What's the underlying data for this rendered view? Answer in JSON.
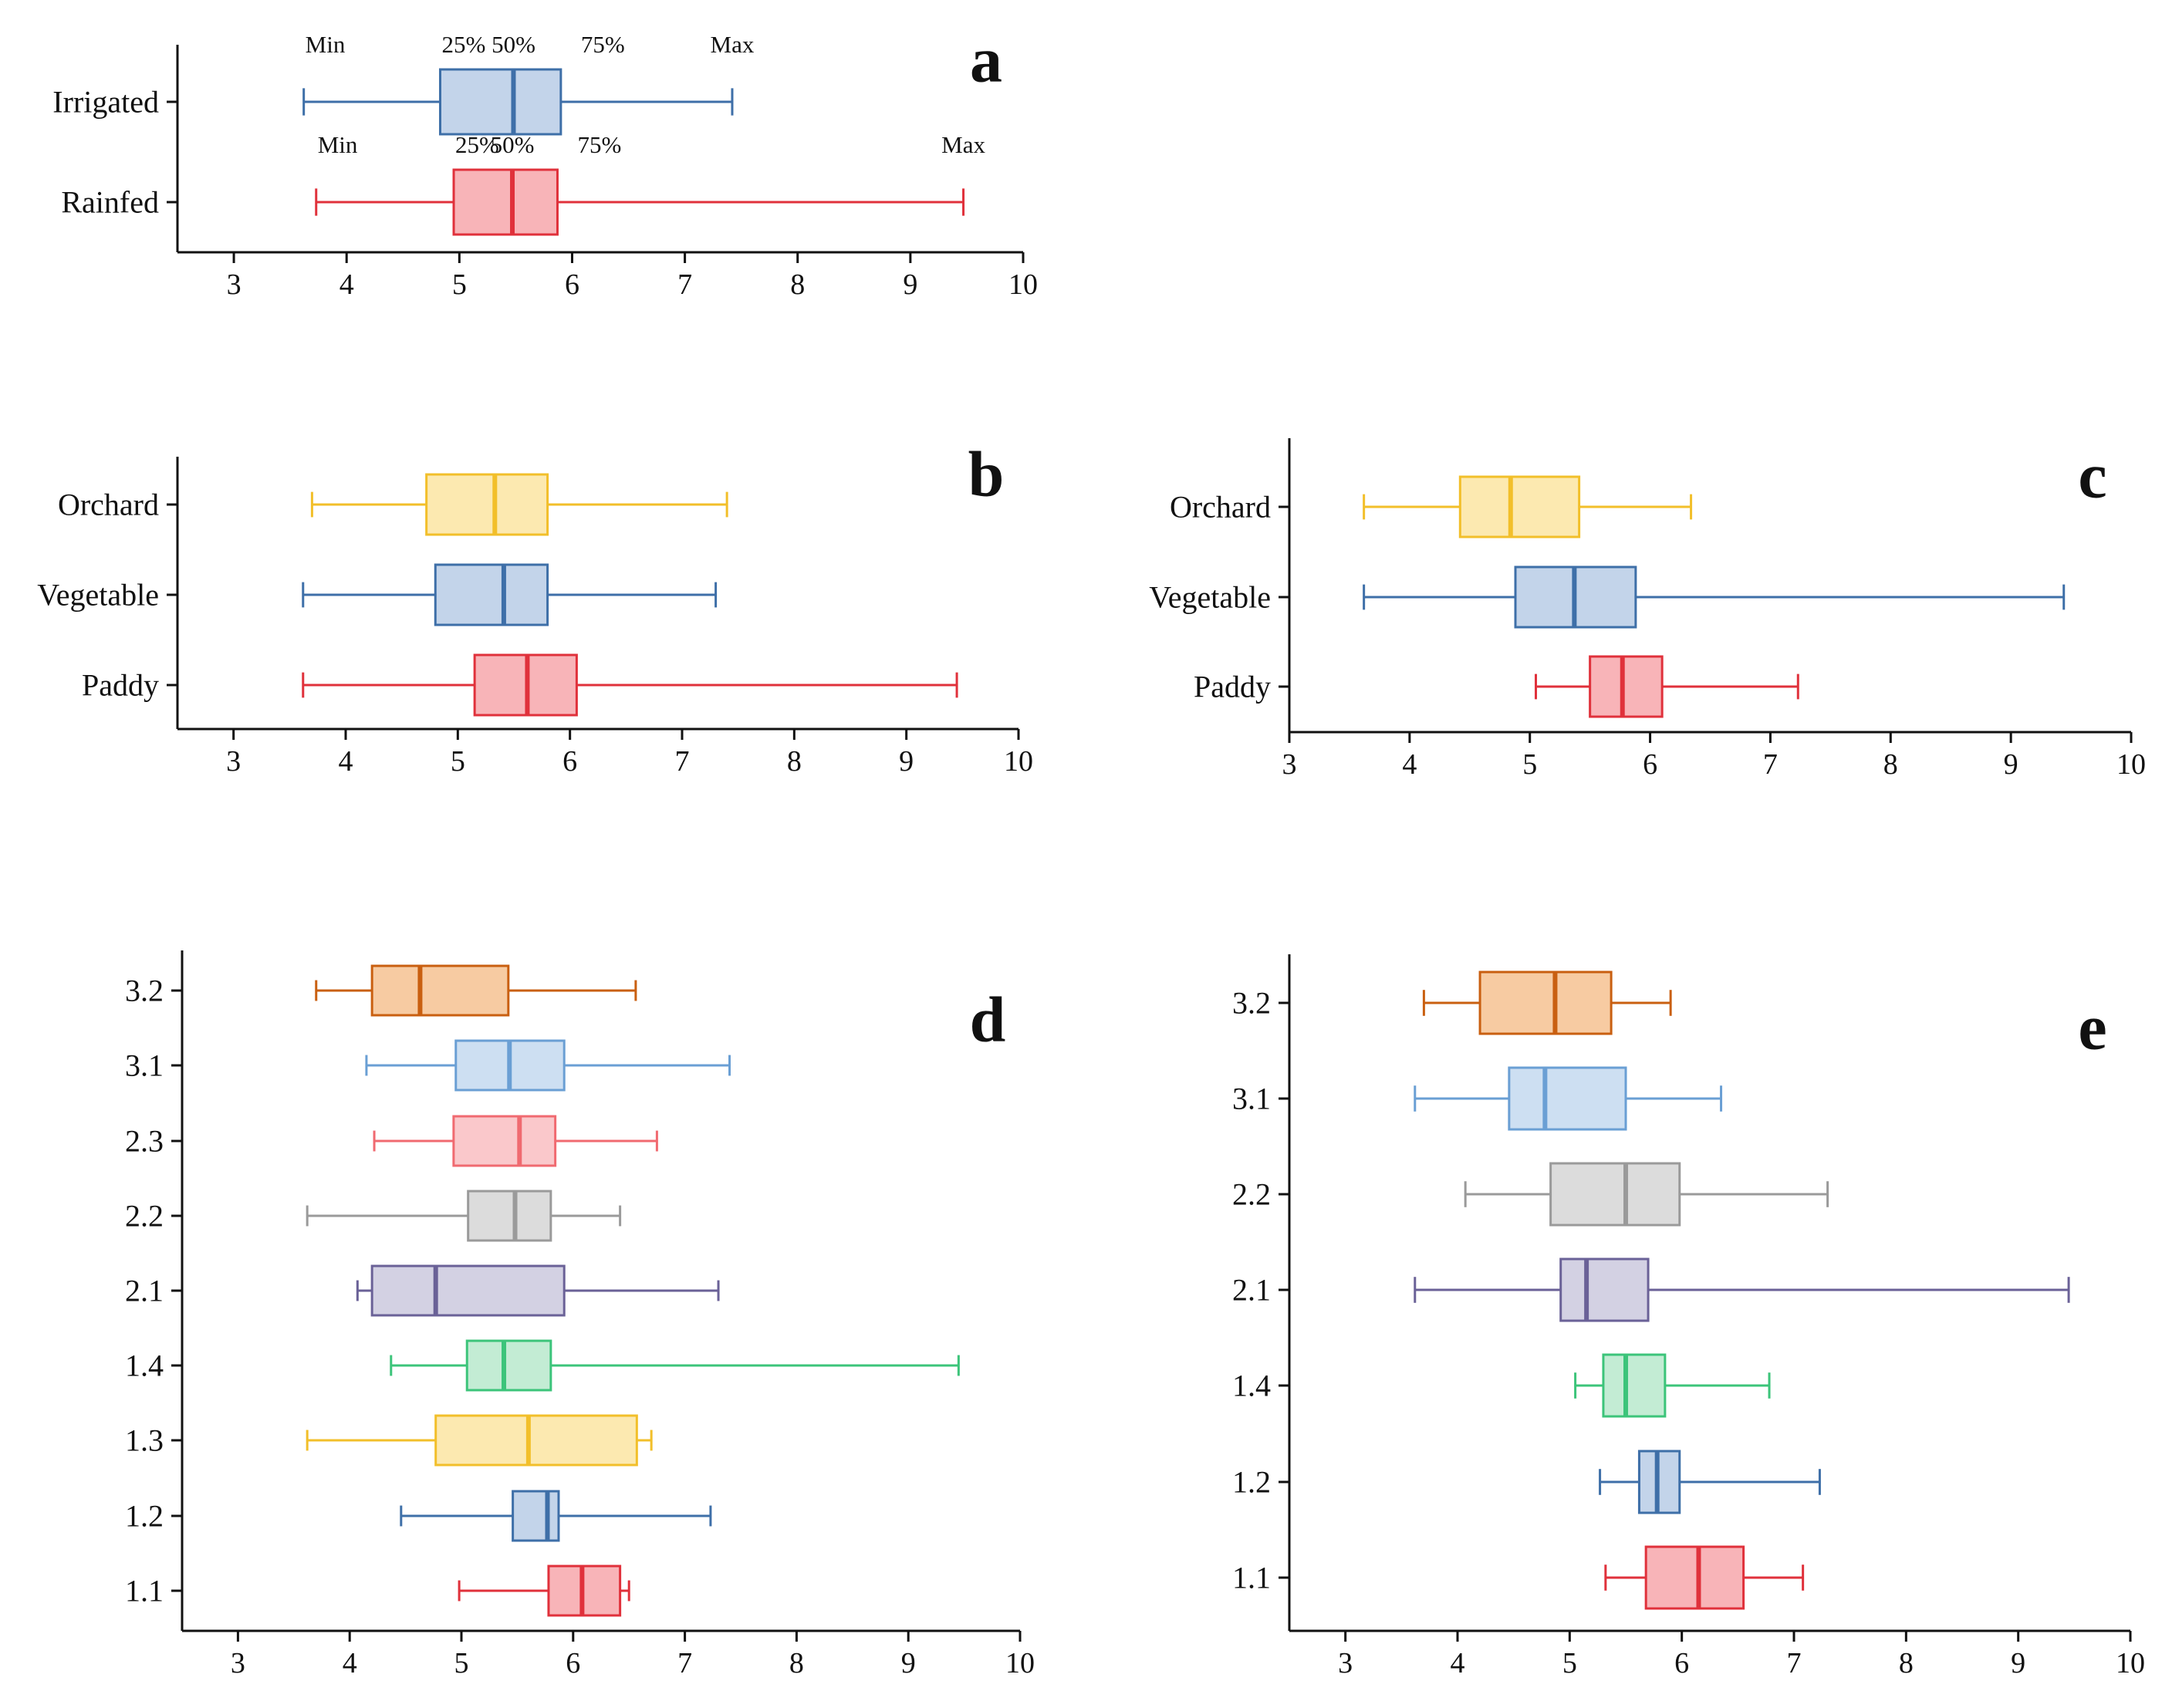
{
  "chart_data": [
    {
      "id": "a",
      "type": "boxplot-horizontal",
      "panel_label": "a",
      "xlim": [
        2.5,
        10
      ],
      "xticks": [
        3,
        4,
        5,
        6,
        7,
        8,
        9,
        10
      ],
      "series": [
        {
          "name": "Irrigated",
          "color": "#3e6fa8",
          "fill": "#c3d4ea",
          "min": 3.62,
          "q1": 4.83,
          "median": 5.48,
          "q3": 5.9,
          "max": 7.42
        },
        {
          "name": "Rainfed",
          "color": "#e0313b",
          "fill": "#f8b4b8",
          "min": 3.73,
          "q1": 4.95,
          "median": 5.47,
          "q3": 5.87,
          "max": 9.47
        }
      ],
      "annotations": {
        "Irrigated": {
          "min": "Min",
          "q1": "25%",
          "median": "50%",
          "q3": "75%",
          "max": "Max"
        },
        "Rainfed": {
          "min": "Min",
          "q1": "25%",
          "median": "50%",
          "q3": "75%",
          "max": "Max"
        }
      }
    },
    {
      "id": "b",
      "type": "boxplot-horizontal",
      "panel_label": "b",
      "xlim": [
        2.5,
        10
      ],
      "xticks": [
        3,
        4,
        5,
        6,
        7,
        8,
        9,
        10
      ],
      "series": [
        {
          "name": "Orchard",
          "color": "#f2bf2a",
          "fill": "#fce9b0",
          "min": 3.7,
          "q1": 4.72,
          "median": 5.33,
          "q3": 5.8,
          "max": 7.4
        },
        {
          "name": "Vegetable",
          "color": "#3e6fa8",
          "fill": "#c3d4ea",
          "min": 3.62,
          "q1": 4.8,
          "median": 5.41,
          "q3": 5.8,
          "max": 7.3
        },
        {
          "name": "Paddy",
          "color": "#e0313b",
          "fill": "#f8b4b8",
          "min": 3.62,
          "q1": 5.15,
          "median": 5.62,
          "q3": 6.06,
          "max": 9.45
        }
      ]
    },
    {
      "id": "c",
      "type": "boxplot-horizontal",
      "panel_label": "c",
      "xlim": [
        3,
        10
      ],
      "xticks": [
        3,
        4,
        5,
        6,
        7,
        8,
        9,
        10
      ],
      "series": [
        {
          "name": "Orchard",
          "color": "#f2bf2a",
          "fill": "#fce9b0",
          "min": 3.62,
          "q1": 4.42,
          "median": 4.84,
          "q3": 5.41,
          "max": 6.34
        },
        {
          "name": "Vegetable",
          "color": "#3e6fa8",
          "fill": "#c3d4ea",
          "min": 3.62,
          "q1": 4.88,
          "median": 5.37,
          "q3": 5.88,
          "max": 9.44
        },
        {
          "name": "Paddy",
          "color": "#e0313b",
          "fill": "#f8b4b8",
          "min": 5.05,
          "q1": 5.5,
          "median": 5.77,
          "q3": 6.1,
          "max": 7.23
        }
      ]
    },
    {
      "id": "d",
      "type": "boxplot-horizontal",
      "panel_label": "d",
      "xlim": [
        2.5,
        10
      ],
      "xticks": [
        3,
        4,
        5,
        6,
        7,
        8,
        9,
        10
      ],
      "series": [
        {
          "name": "3.2",
          "color": "#c95f10",
          "fill": "#f7cba2",
          "min": 3.7,
          "q1": 4.2,
          "median": 4.63,
          "q3": 5.42,
          "max": 6.56
        },
        {
          "name": "3.1",
          "color": "#6a9fd4",
          "fill": "#cddff2",
          "min": 4.15,
          "q1": 4.95,
          "median": 5.43,
          "q3": 5.92,
          "max": 7.4
        },
        {
          "name": "2.3",
          "color": "#f06a70",
          "fill": "#fac8cb",
          "min": 4.22,
          "q1": 4.93,
          "median": 5.52,
          "q3": 5.84,
          "max": 6.75
        },
        {
          "name": "2.2",
          "color": "#9a9a9a",
          "fill": "#dcdcdc",
          "min": 3.62,
          "q1": 5.06,
          "median": 5.48,
          "q3": 5.8,
          "max": 6.42
        },
        {
          "name": "2.1",
          "color": "#6a6197",
          "fill": "#d3d1e3",
          "min": 4.07,
          "q1": 4.2,
          "median": 4.77,
          "q3": 5.92,
          "max": 7.3
        },
        {
          "name": "1.4",
          "color": "#3cc47a",
          "fill": "#c3ecd4",
          "min": 4.37,
          "q1": 5.05,
          "median": 5.38,
          "q3": 5.8,
          "max": 9.45
        },
        {
          "name": "1.3",
          "color": "#f2bf2a",
          "fill": "#fce9b0",
          "min": 3.62,
          "q1": 4.77,
          "median": 5.6,
          "q3": 6.57,
          "max": 6.7
        },
        {
          "name": "1.2",
          "color": "#3e6fa8",
          "fill": "#c3d4ea",
          "min": 4.46,
          "q1": 5.46,
          "median": 5.77,
          "q3": 5.87,
          "max": 7.23
        },
        {
          "name": "1.1",
          "color": "#e0313b",
          "fill": "#f8b4b8",
          "min": 4.98,
          "q1": 5.78,
          "median": 6.08,
          "q3": 6.42,
          "max": 6.5
        }
      ]
    },
    {
      "id": "e",
      "type": "boxplot-horizontal",
      "panel_label": "e",
      "xlim": [
        2.5,
        10
      ],
      "xticks": [
        3,
        4,
        5,
        6,
        7,
        8,
        9,
        10
      ],
      "series": [
        {
          "name": "3.2",
          "color": "#c95f10",
          "fill": "#f7cba2",
          "min": 3.7,
          "q1": 4.2,
          "median": 4.87,
          "q3": 5.37,
          "max": 5.9
        },
        {
          "name": "3.1",
          "color": "#6a9fd4",
          "fill": "#cddff2",
          "min": 3.62,
          "q1": 4.46,
          "median": 4.78,
          "q3": 5.5,
          "max": 6.35
        },
        {
          "name": "2.2",
          "color": "#9a9a9a",
          "fill": "#dcdcdc",
          "min": 4.07,
          "q1": 4.83,
          "median": 5.5,
          "q3": 5.98,
          "max": 7.3
        },
        {
          "name": "2.1",
          "color": "#6a6197",
          "fill": "#d3d1e3",
          "min": 3.62,
          "q1": 4.92,
          "median": 5.15,
          "q3": 5.7,
          "max": 9.45
        },
        {
          "name": "1.4",
          "color": "#3cc47a",
          "fill": "#c3ecd4",
          "min": 5.05,
          "q1": 5.3,
          "median": 5.5,
          "q3": 5.85,
          "max": 6.78
        },
        {
          "name": "1.2",
          "color": "#3e6fa8",
          "fill": "#c3d4ea",
          "min": 5.27,
          "q1": 5.62,
          "median": 5.78,
          "q3": 5.98,
          "max": 7.23
        },
        {
          "name": "1.1",
          "color": "#e0313b",
          "fill": "#f8b4b8",
          "min": 5.32,
          "q1": 5.68,
          "median": 6.15,
          "q3": 6.55,
          "max": 7.08
        }
      ]
    }
  ]
}
